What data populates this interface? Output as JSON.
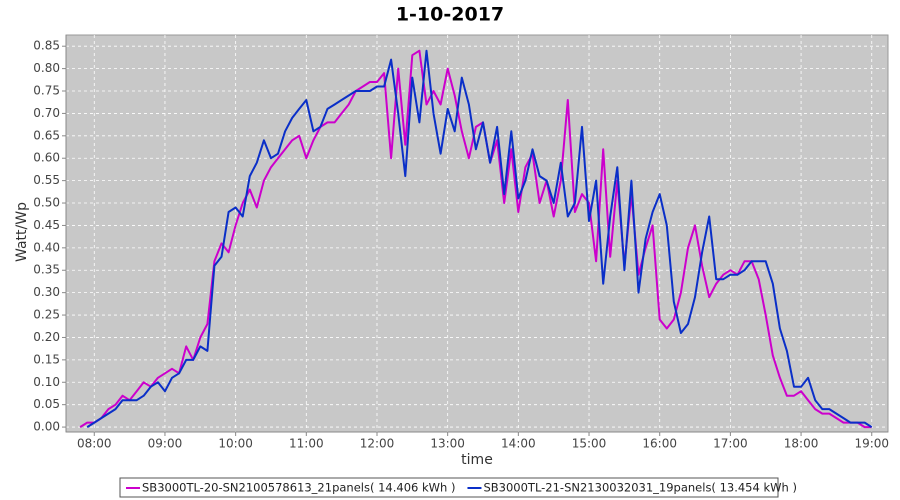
{
  "chart_data": {
    "type": "line",
    "title": "1-10-2017",
    "x_label": "time",
    "y_label": "Watt/Wp",
    "xlim": [
      7.6,
      19.23
    ],
    "ylim": [
      -0.011,
      0.875
    ],
    "grid": true,
    "legend": "bottom",
    "xticks": [
      {
        "value": 8,
        "label": "08:00"
      },
      {
        "value": 9,
        "label": "09:00"
      },
      {
        "value": 10,
        "label": "10:00"
      },
      {
        "value": 11,
        "label": "11:00"
      },
      {
        "value": 12,
        "label": "12:00"
      },
      {
        "value": 13,
        "label": "13:00"
      },
      {
        "value": 14,
        "label": "14:00"
      },
      {
        "value": 15,
        "label": "15:00"
      },
      {
        "value": 16,
        "label": "16:00"
      },
      {
        "value": 17,
        "label": "17:00"
      },
      {
        "value": 18,
        "label": "18:00"
      },
      {
        "value": 19,
        "label": "19:00"
      }
    ],
    "yticks": [
      {
        "value": 0,
        "label": "0.00"
      },
      {
        "value": 0.05,
        "label": "0.05"
      },
      {
        "value": 0.1,
        "label": "0.10"
      },
      {
        "value": 0.15,
        "label": "0.15"
      },
      {
        "value": 0.2,
        "label": "0.20"
      },
      {
        "value": 0.25,
        "label": "0.25"
      },
      {
        "value": 0.3,
        "label": "0.30"
      },
      {
        "value": 0.35,
        "label": "0.35"
      },
      {
        "value": 0.4,
        "label": "0.40"
      },
      {
        "value": 0.45,
        "label": "0.45"
      },
      {
        "value": 0.5,
        "label": "0.50"
      },
      {
        "value": 0.55,
        "label": "0.55"
      },
      {
        "value": 0.6,
        "label": "0.60"
      },
      {
        "value": 0.65,
        "label": "0.65"
      },
      {
        "value": 0.7,
        "label": "0.70"
      },
      {
        "value": 0.75,
        "label": "0.75"
      },
      {
        "value": 0.8,
        "label": "0.80"
      },
      {
        "value": 0.85,
        "label": "0.85"
      }
    ],
    "x": [
      7.8,
      7.9,
      8.0,
      8.1,
      8.2,
      8.3,
      8.4,
      8.5,
      8.6,
      8.7,
      8.8,
      8.9,
      9.0,
      9.1,
      9.2,
      9.3,
      9.4,
      9.5,
      9.6,
      9.7,
      9.8,
      9.9,
      10.0,
      10.1,
      10.2,
      10.3,
      10.4,
      10.5,
      10.6,
      10.7,
      10.8,
      10.9,
      11.0,
      11.1,
      11.2,
      11.3,
      11.4,
      11.5,
      11.6,
      11.7,
      11.8,
      11.9,
      12.0,
      12.1,
      12.2,
      12.3,
      12.4,
      12.5,
      12.6,
      12.7,
      12.8,
      12.9,
      13.0,
      13.1,
      13.2,
      13.3,
      13.4,
      13.5,
      13.6,
      13.7,
      13.8,
      13.9,
      14.0,
      14.1,
      14.2,
      14.3,
      14.4,
      14.5,
      14.6,
      14.7,
      14.8,
      14.9,
      15.0,
      15.1,
      15.2,
      15.3,
      15.4,
      15.5,
      15.6,
      15.7,
      15.8,
      15.9,
      16.0,
      16.1,
      16.2,
      16.3,
      16.4,
      16.5,
      16.6,
      16.7,
      16.8,
      16.9,
      17.0,
      17.1,
      17.2,
      17.3,
      17.4,
      17.5,
      17.6,
      17.7,
      17.8,
      17.9,
      18.0,
      18.1,
      18.2,
      18.3,
      18.4,
      18.5,
      18.6,
      18.7,
      18.8,
      18.9,
      19.0
    ],
    "series": [
      {
        "name": "SB3000TL-20-SN2100578613_21panels( 14.406 kWh )",
        "color": "#cc00cc",
        "values": [
          0.0,
          0.01,
          0.01,
          0.02,
          0.04,
          0.05,
          0.07,
          0.06,
          0.08,
          0.1,
          0.09,
          0.11,
          0.12,
          0.13,
          0.12,
          0.18,
          0.15,
          0.2,
          0.23,
          0.37,
          0.41,
          0.39,
          0.45,
          0.5,
          0.53,
          0.49,
          0.55,
          0.58,
          0.6,
          0.62,
          0.64,
          0.65,
          0.6,
          0.64,
          0.67,
          0.68,
          0.68,
          0.7,
          0.72,
          0.75,
          0.76,
          0.77,
          0.77,
          0.79,
          0.6,
          0.8,
          0.63,
          0.83,
          0.84,
          0.72,
          0.75,
          0.72,
          0.8,
          0.74,
          0.66,
          0.6,
          0.67,
          0.68,
          0.59,
          0.64,
          0.5,
          0.62,
          0.48,
          0.58,
          0.61,
          0.5,
          0.55,
          0.47,
          0.55,
          0.73,
          0.48,
          0.52,
          0.5,
          0.37,
          0.62,
          0.38,
          0.55,
          0.36,
          0.52,
          0.34,
          0.4,
          0.45,
          0.24,
          0.22,
          0.24,
          0.3,
          0.4,
          0.45,
          0.36,
          0.29,
          0.32,
          0.34,
          0.35,
          0.34,
          0.37,
          0.37,
          0.33,
          0.25,
          0.16,
          0.11,
          0.07,
          0.07,
          0.08,
          0.06,
          0.04,
          0.03,
          0.03,
          0.02,
          0.01,
          0.01,
          0.01,
          0.0,
          0.0
        ]
      },
      {
        "name": "SB3000TL-21-SN2130032031_19panels( 13.454 kWh )",
        "color": "#0a2fc8",
        "values": [
          null,
          0.0,
          0.01,
          0.02,
          0.03,
          0.04,
          0.06,
          0.06,
          0.06,
          0.07,
          0.09,
          0.1,
          0.08,
          0.11,
          0.12,
          0.15,
          0.15,
          0.18,
          0.17,
          0.36,
          0.38,
          0.48,
          0.49,
          0.47,
          0.56,
          0.59,
          0.64,
          0.6,
          0.61,
          0.66,
          0.69,
          0.71,
          0.73,
          0.66,
          0.67,
          0.71,
          0.72,
          0.73,
          0.74,
          0.75,
          0.75,
          0.75,
          0.76,
          0.76,
          0.82,
          0.7,
          0.56,
          0.78,
          0.68,
          0.84,
          0.7,
          0.61,
          0.71,
          0.66,
          0.78,
          0.72,
          0.62,
          0.68,
          0.59,
          0.67,
          0.52,
          0.66,
          0.51,
          0.55,
          0.62,
          0.56,
          0.55,
          0.5,
          0.59,
          0.47,
          0.5,
          0.67,
          0.46,
          0.55,
          0.32,
          0.47,
          0.58,
          0.35,
          0.55,
          0.3,
          0.42,
          0.48,
          0.52,
          0.45,
          0.28,
          0.21,
          0.23,
          0.29,
          0.39,
          0.47,
          0.33,
          0.33,
          0.34,
          0.34,
          0.35,
          0.37,
          0.37,
          0.37,
          0.32,
          0.22,
          0.17,
          0.09,
          0.09,
          0.11,
          0.06,
          0.04,
          0.04,
          0.03,
          0.02,
          0.01,
          0.01,
          0.01,
          0.0
        ]
      }
    ]
  }
}
